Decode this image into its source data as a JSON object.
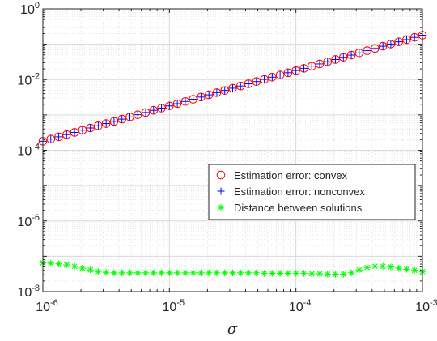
{
  "chart_data": {
    "type": "scatter",
    "title": "",
    "xlabel": "σ",
    "ylabel": "",
    "xscale": "log",
    "yscale": "log",
    "xlim": [
      1e-06,
      0.001
    ],
    "ylim": [
      1e-08,
      1
    ],
    "grid": true,
    "minor_grid": true,
    "legend_position": "center-right",
    "x_ticks": [
      {
        "base": "10",
        "exp": "-6"
      },
      {
        "base": "10",
        "exp": "-5"
      },
      {
        "base": "10",
        "exp": "-4"
      },
      {
        "base": "10",
        "exp": "-3"
      }
    ],
    "y_ticks": [
      {
        "base": "10",
        "exp": "0"
      },
      {
        "base": "10",
        "exp": "-2"
      },
      {
        "base": "10",
        "exp": "-4"
      },
      {
        "base": "10",
        "exp": "-6"
      },
      {
        "base": "10",
        "exp": "-8"
      }
    ],
    "x": [
      1e-06,
      1.155e-06,
      1.334e-06,
      1.54e-06,
      1.778e-06,
      2.054e-06,
      2.371e-06,
      2.738e-06,
      3.162e-06,
      3.652e-06,
      4.217e-06,
      4.87e-06,
      5.623e-06,
      6.494e-06,
      7.499e-06,
      8.66e-06,
      1e-05,
      1.155e-05,
      1.334e-05,
      1.54e-05,
      1.778e-05,
      2.054e-05,
      2.371e-05,
      2.738e-05,
      3.162e-05,
      3.652e-05,
      4.217e-05,
      4.87e-05,
      5.623e-05,
      6.494e-05,
      7.499e-05,
      8.66e-05,
      0.0001,
      0.0001155,
      0.0001334,
      0.000154,
      0.0001778,
      0.0002054,
      0.0002371,
      0.0002738,
      0.0003162,
      0.0003652,
      0.0004217,
      0.000487,
      0.0005623,
      0.0006494,
      0.0007499,
      0.000866,
      0.001
    ],
    "series": [
      {
        "name": "Estimation error: convex",
        "marker": "circle",
        "color": "#ff0000",
        "values": [
          0.00018,
          0.000208,
          0.00024,
          0.000277,
          0.00032,
          0.00037,
          0.000427,
          0.000493,
          0.000569,
          0.000657,
          0.000759,
          0.000877,
          0.00101,
          0.00117,
          0.00135,
          0.00156,
          0.0018,
          0.00208,
          0.0024,
          0.00277,
          0.0032,
          0.0037,
          0.00427,
          0.00493,
          0.00569,
          0.00657,
          0.00759,
          0.00877,
          0.0101,
          0.0117,
          0.0135,
          0.0156,
          0.018,
          0.0208,
          0.024,
          0.0277,
          0.032,
          0.037,
          0.0427,
          0.0493,
          0.0569,
          0.0657,
          0.0759,
          0.0877,
          0.101,
          0.117,
          0.135,
          0.156,
          0.18
        ]
      },
      {
        "name": "Estimation error: nonconvex",
        "marker": "plus",
        "color": "#0000ff",
        "values": [
          0.00018,
          0.000208,
          0.00024,
          0.000277,
          0.00032,
          0.00037,
          0.000427,
          0.000493,
          0.000569,
          0.000657,
          0.000759,
          0.000877,
          0.00101,
          0.00117,
          0.00135,
          0.00156,
          0.0018,
          0.00208,
          0.0024,
          0.00277,
          0.0032,
          0.0037,
          0.00427,
          0.00493,
          0.00569,
          0.00657,
          0.00759,
          0.00877,
          0.0101,
          0.0117,
          0.0135,
          0.0156,
          0.018,
          0.0208,
          0.024,
          0.0277,
          0.032,
          0.037,
          0.0427,
          0.0493,
          0.0569,
          0.0657,
          0.0759,
          0.0877,
          0.101,
          0.117,
          0.135,
          0.156,
          0.18
        ]
      },
      {
        "name": "Distance between solutions",
        "marker": "asterisk",
        "color": "#00ff00",
        "values": [
          6.5e-08,
          6.4e-08,
          6.1e-08,
          5.7e-08,
          5.2e-08,
          4.6e-08,
          4.1e-08,
          3.7e-08,
          3.5e-08,
          3.4e-08,
          3.4e-08,
          3.4e-08,
          3.4e-08,
          3.4e-08,
          3.4e-08,
          3.4e-08,
          3.4e-08,
          3.4e-08,
          3.4e-08,
          3.4e-08,
          3.4e-08,
          3.4e-08,
          3.4e-08,
          3.4e-08,
          3.4e-08,
          3.4e-08,
          3.4e-08,
          3.4e-08,
          3.3e-08,
          3.3e-08,
          3.3e-08,
          3.3e-08,
          3.3e-08,
          3.3e-08,
          3.2e-08,
          3.2e-08,
          3.1e-08,
          3.1e-08,
          3.1e-08,
          3.4e-08,
          4.1e-08,
          4.8e-08,
          5.2e-08,
          5.2e-08,
          5e-08,
          4.6e-08,
          4.3e-08,
          4e-08,
          3.7e-08
        ]
      }
    ]
  }
}
